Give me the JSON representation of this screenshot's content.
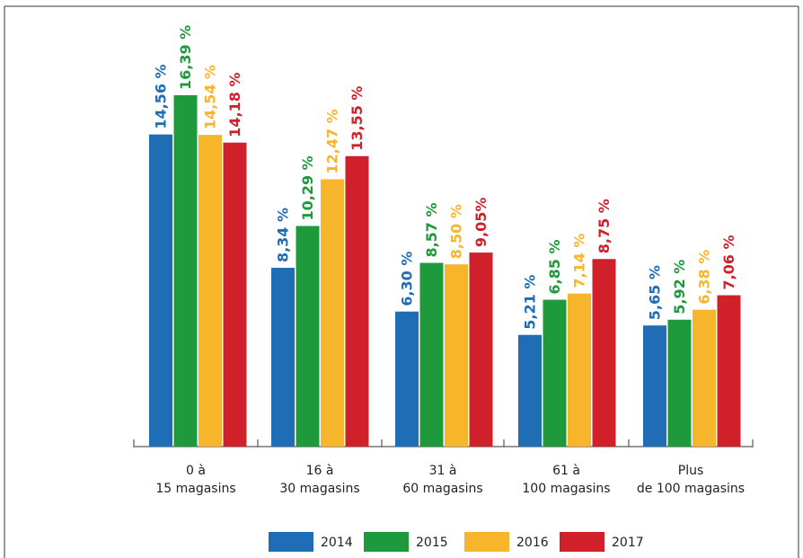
{
  "chart_data": {
    "type": "bar",
    "categories": [
      [
        "0 à",
        "15 magasins"
      ],
      [
        "16 à",
        "30 magasins"
      ],
      [
        "31 à",
        "60 magasins"
      ],
      [
        "61 à",
        "100 magasins"
      ],
      [
        "Plus",
        "de 100 magasins"
      ]
    ],
    "series": [
      {
        "name": "2014",
        "color": "#1f6db5",
        "values": [
          14.56,
          8.34,
          6.3,
          5.21,
          5.65
        ],
        "labels": [
          "14,56 %",
          "8,34 %",
          "6,30 %",
          "5,21 %",
          "5,65 %"
        ]
      },
      {
        "name": "2015",
        "color": "#1e9a3c",
        "values": [
          16.39,
          10.29,
          8.57,
          6.85,
          5.92
        ],
        "labels": [
          "16,39 %",
          "10,29 %",
          "8,57 %",
          "6,85 %",
          "5,92 %"
        ]
      },
      {
        "name": "2016",
        "color": "#f7b52c",
        "values": [
          14.54,
          12.47,
          8.5,
          7.14,
          6.38
        ],
        "labels": [
          "14,54 %",
          "12,47 %",
          "8,50 %",
          "7,14 %",
          "6,38 %"
        ]
      },
      {
        "name": "2017",
        "color": "#d0202a",
        "values": [
          14.18,
          13.55,
          9.05,
          8.75,
          7.06
        ],
        "labels": [
          "14,18 %",
          "13,55 %",
          "9,05%",
          "8,75 %",
          "7,06 %"
        ]
      }
    ],
    "ylim": [
      0,
      16.39
    ],
    "grid": false,
    "legend_position": "bottom",
    "title": "",
    "xlabel": "",
    "ylabel": ""
  }
}
